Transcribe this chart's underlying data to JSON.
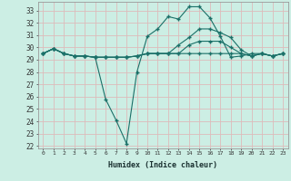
{
  "xlabel": "Humidex (Indice chaleur)",
  "bg_color": "#cceee4",
  "grid_color": "#ddbbbb",
  "line_color": "#1a7068",
  "xlim": [
    -0.5,
    23.5
  ],
  "ylim": [
    21.8,
    33.7
  ],
  "yticks": [
    22,
    23,
    24,
    25,
    26,
    27,
    28,
    29,
    30,
    31,
    32,
    33
  ],
  "xticks": [
    0,
    1,
    2,
    3,
    4,
    5,
    6,
    7,
    8,
    9,
    10,
    11,
    12,
    13,
    14,
    15,
    16,
    17,
    18,
    19,
    20,
    21,
    22,
    23
  ],
  "series": [
    [
      29.5,
      29.9,
      29.5,
      29.3,
      29.3,
      29.2,
      25.8,
      24.1,
      22.2,
      28.0,
      30.9,
      31.5,
      32.5,
      32.3,
      33.3,
      33.3,
      32.4,
      30.9,
      29.2,
      29.3,
      29.5,
      29.5,
      29.3,
      29.5
    ],
    [
      29.5,
      29.9,
      29.5,
      29.3,
      29.3,
      29.2,
      29.2,
      29.2,
      29.2,
      29.3,
      29.5,
      29.5,
      29.5,
      30.2,
      30.8,
      31.5,
      31.5,
      31.2,
      30.8,
      29.8,
      29.3,
      29.5,
      29.3,
      29.5
    ],
    [
      29.5,
      29.9,
      29.5,
      29.3,
      29.3,
      29.2,
      29.2,
      29.2,
      29.2,
      29.3,
      29.5,
      29.5,
      29.5,
      29.5,
      30.2,
      30.5,
      30.5,
      30.5,
      30.0,
      29.5,
      29.3,
      29.5,
      29.3,
      29.5
    ],
    [
      29.5,
      29.9,
      29.5,
      29.3,
      29.3,
      29.2,
      29.2,
      29.2,
      29.2,
      29.3,
      29.5,
      29.5,
      29.5,
      29.5,
      29.5,
      29.5,
      29.5,
      29.5,
      29.5,
      29.5,
      29.3,
      29.5,
      29.3,
      29.5
    ]
  ]
}
